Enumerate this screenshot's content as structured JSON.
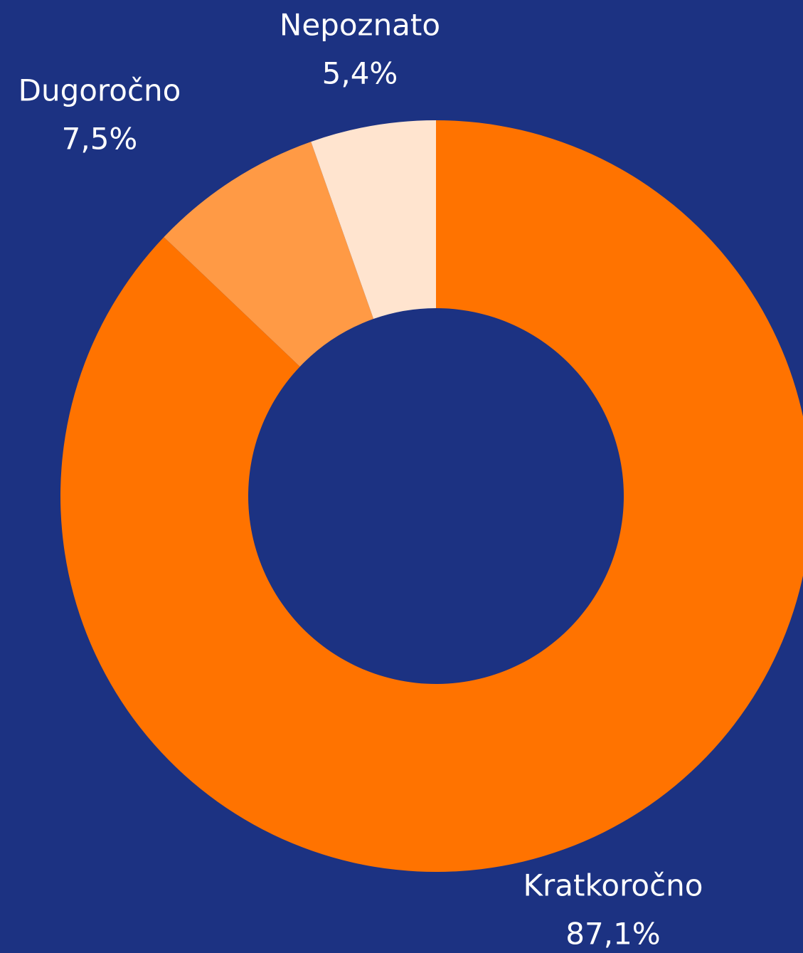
{
  "chart_data": {
    "type": "donut",
    "categories": [
      "Kratkoročno",
      "Dugoročno",
      "Nepoznato"
    ],
    "values": [
      87.1,
      7.5,
      5.4
    ],
    "value_labels": [
      "87,1%",
      "7,5%",
      "5,4%"
    ],
    "colors": [
      "#ff7300",
      "#ff9a45",
      "#ffe4cf"
    ]
  }
}
